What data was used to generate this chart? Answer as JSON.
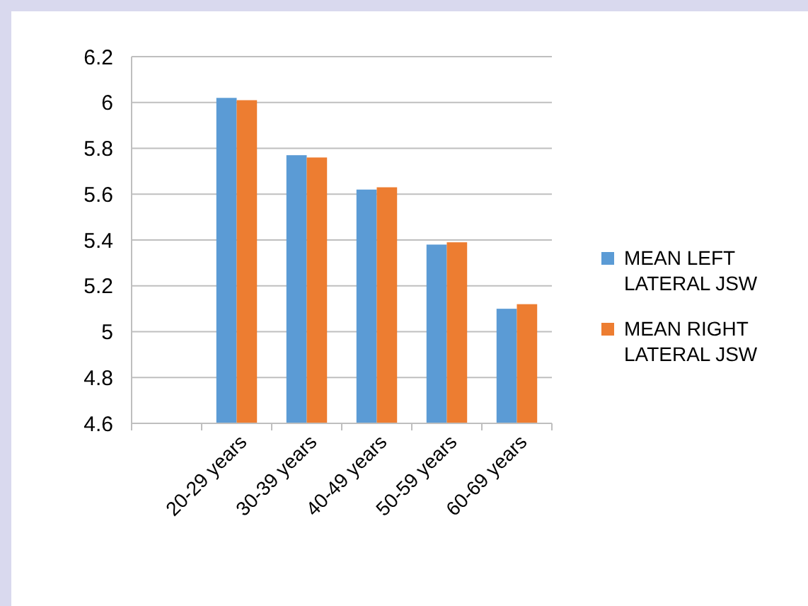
{
  "chart_data": {
    "type": "bar",
    "categories": [
      null,
      "20-29 years",
      "30-39 years",
      "40-49 years",
      "50-59 years",
      "60-69 years"
    ],
    "series": [
      {
        "name": "MEAN LEFT LATERAL JSW",
        "color": "#5b9bd5",
        "values": [
          null,
          6.02,
          5.77,
          5.62,
          5.38,
          5.1
        ]
      },
      {
        "name": "MEAN RIGHT LATERAL JSW",
        "color": "#ed7d31",
        "values": [
          null,
          6.01,
          5.76,
          5.63,
          5.39,
          5.12
        ]
      }
    ],
    "ylim": [
      4.6,
      6.2
    ],
    "yticks": [
      4.6,
      4.8,
      5,
      5.2,
      5.4,
      5.6,
      5.8,
      6,
      6.2
    ],
    "grid": "y",
    "legend": "right"
  }
}
